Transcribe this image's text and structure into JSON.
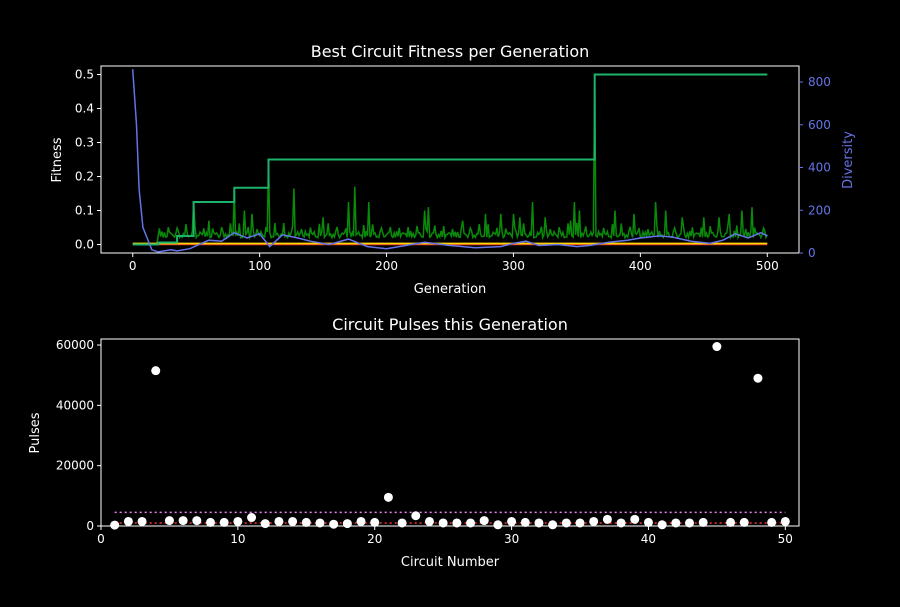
{
  "chart_data": [
    {
      "type": "line",
      "title": "Best Circuit Fitness per Generation",
      "xlabel": "Generation",
      "ylabel": "Fitness",
      "y2label": "Diversity",
      "xlim": [
        -25,
        525
      ],
      "ylim": [
        -0.025,
        0.525
      ],
      "y2lim": [
        0,
        875
      ],
      "xticks": [
        0,
        100,
        200,
        300,
        400,
        500
      ],
      "yticks": [
        0.0,
        0.1,
        0.2,
        0.3,
        0.4,
        0.5
      ],
      "y2ticks": [
        0,
        200,
        400,
        600,
        800
      ],
      "colors": {
        "best": "#1db36b",
        "current": "#0a8a0a",
        "mean": "#ffd700",
        "min": "#e03030",
        "diversity": "#6474e6",
        "axis2": "#6474e6"
      },
      "series": [
        {
          "key": "best",
          "steps": [
            [
              0,
              0.0
            ],
            [
              20,
              0.006
            ],
            [
              35,
              0.025
            ],
            [
              48,
              0.125
            ],
            [
              80,
              0.167
            ],
            [
              107,
              0.25
            ],
            [
              364,
              0.5
            ],
            [
              500,
              0.5
            ]
          ]
        },
        {
          "key": "current",
          "base": 0.02,
          "spikes": [
            [
              48,
              0.125
            ],
            [
              60,
              0.07
            ],
            [
              80,
              0.16
            ],
            [
              88,
              0.1
            ],
            [
              94,
              0.09
            ],
            [
              107,
              0.25
            ],
            [
              127,
              0.165
            ],
            [
              150,
              0.08
            ],
            [
              170,
              0.125
            ],
            [
              175,
              0.17
            ],
            [
              186,
              0.125
            ],
            [
              230,
              0.1
            ],
            [
              233,
              0.11
            ],
            [
              260,
              0.07
            ],
            [
              278,
              0.09
            ],
            [
              290,
              0.09
            ],
            [
              300,
              0.09
            ],
            [
              305,
              0.08
            ],
            [
              315,
              0.125
            ],
            [
              325,
              0.08
            ],
            [
              345,
              0.07
            ],
            [
              348,
              0.125
            ],
            [
              352,
              0.1
            ],
            [
              364,
              0.5
            ],
            [
              380,
              0.1
            ],
            [
              395,
              0.09
            ],
            [
              412,
              0.125
            ],
            [
              420,
              0.1
            ],
            [
              433,
              0.08
            ],
            [
              450,
              0.08
            ],
            [
              462,
              0.08
            ],
            [
              470,
              0.09
            ],
            [
              480,
              0.1
            ],
            [
              488,
              0.11
            ]
          ]
        },
        {
          "key": "mean",
          "values_level": 0.003
        },
        {
          "key": "min",
          "values_level": 0.0
        },
        {
          "key": "diversity",
          "points": [
            [
              0,
              860
            ],
            [
              3,
              600
            ],
            [
              5,
              300
            ],
            [
              8,
              120
            ],
            [
              12,
              60
            ],
            [
              15,
              15
            ],
            [
              20,
              5
            ],
            [
              25,
              10
            ],
            [
              30,
              15
            ],
            [
              35,
              10
            ],
            [
              45,
              20
            ],
            [
              60,
              60
            ],
            [
              70,
              55
            ],
            [
              80,
              95
            ],
            [
              90,
              70
            ],
            [
              100,
              90
            ],
            [
              108,
              30
            ],
            [
              118,
              85
            ],
            [
              130,
              70
            ],
            [
              140,
              55
            ],
            [
              155,
              40
            ],
            [
              170,
              65
            ],
            [
              185,
              30
            ],
            [
              200,
              20
            ],
            [
              215,
              35
            ],
            [
              230,
              50
            ],
            [
              250,
              35
            ],
            [
              270,
              25
            ],
            [
              290,
              30
            ],
            [
              300,
              45
            ],
            [
              310,
              55
            ],
            [
              320,
              35
            ],
            [
              335,
              40
            ],
            [
              350,
              30
            ],
            [
              360,
              35
            ],
            [
              375,
              50
            ],
            [
              390,
              60
            ],
            [
              400,
              70
            ],
            [
              415,
              80
            ],
            [
              425,
              75
            ],
            [
              440,
              55
            ],
            [
              455,
              45
            ],
            [
              465,
              60
            ],
            [
              475,
              90
            ],
            [
              485,
              70
            ],
            [
              495,
              95
            ],
            [
              500,
              80
            ]
          ]
        }
      ]
    },
    {
      "type": "scatter",
      "title": "Circuit Pulses this Generation",
      "xlabel": "Circuit Number",
      "ylabel": "Pulses",
      "xlim": [
        0,
        51
      ],
      "ylim": [
        0,
        62000
      ],
      "xticks": [
        0,
        10,
        20,
        30,
        40,
        50
      ],
      "yticks": [
        0,
        20000,
        40000,
        60000
      ],
      "hlines": [
        {
          "value": 4500,
          "color": "#ee82ee"
        },
        {
          "value": 1000,
          "color": "#ff3030"
        }
      ],
      "points": [
        [
          1,
          300
        ],
        [
          2,
          1500
        ],
        [
          3,
          1500
        ],
        [
          4,
          51500
        ],
        [
          5,
          1800
        ],
        [
          6,
          1800
        ],
        [
          7,
          1800
        ],
        [
          8,
          1200
        ],
        [
          9,
          1200
        ],
        [
          10,
          1500
        ],
        [
          11,
          2800
        ],
        [
          12,
          800
        ],
        [
          13,
          1500
        ],
        [
          14,
          1500
        ],
        [
          15,
          1200
        ],
        [
          16,
          1000
        ],
        [
          17,
          600
        ],
        [
          18,
          800
        ],
        [
          19,
          1500
        ],
        [
          20,
          1200
        ],
        [
          21,
          9500
        ],
        [
          22,
          1000
        ],
        [
          23,
          3400
        ],
        [
          24,
          1500
        ],
        [
          25,
          1000
        ],
        [
          26,
          1000
        ],
        [
          27,
          1000
        ],
        [
          28,
          1800
        ],
        [
          29,
          400
        ],
        [
          30,
          1500
        ],
        [
          31,
          1200
        ],
        [
          32,
          1000
        ],
        [
          33,
          400
        ],
        [
          34,
          1000
        ],
        [
          35,
          1000
        ],
        [
          36,
          1500
        ],
        [
          37,
          2200
        ],
        [
          38,
          1000
        ],
        [
          39,
          2200
        ],
        [
          40,
          1200
        ],
        [
          41,
          400
        ],
        [
          42,
          1000
        ],
        [
          43,
          1000
        ],
        [
          44,
          1200
        ],
        [
          45,
          59500
        ],
        [
          46,
          1200
        ],
        [
          47,
          1200
        ],
        [
          48,
          49000
        ],
        [
          49,
          1200
        ],
        [
          50,
          1500
        ]
      ]
    }
  ]
}
